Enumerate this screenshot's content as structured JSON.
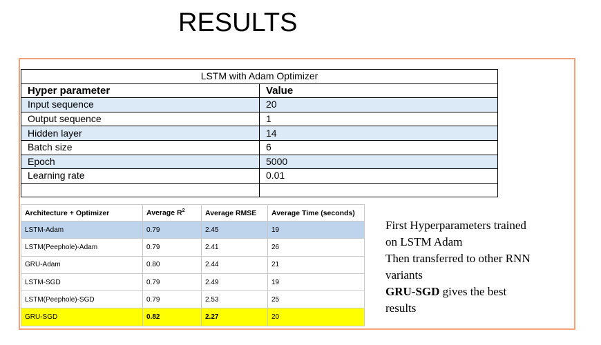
{
  "slide": {
    "title": "RESULTS"
  },
  "hyperparams": {
    "caption": "LSTM with Adam Optimizer",
    "header": [
      "Hyper parameter",
      "Value"
    ],
    "rows": [
      [
        "Input sequence",
        "20"
      ],
      [
        "Output sequence",
        "1"
      ],
      [
        "Hidden layer",
        "14"
      ],
      [
        "Batch size",
        "6"
      ],
      [
        "Epoch",
        "5000"
      ],
      [
        "Learning rate",
        "0.01"
      ],
      [
        "",
        ""
      ]
    ]
  },
  "results": {
    "header": [
      "Architecture + Optimizer",
      "Average R",
      "2",
      "Average RMSE",
      "Average Time (seconds)"
    ],
    "rows": [
      [
        "LSTM-Adam",
        "0.79",
        "2.45",
        "19"
      ],
      [
        "LSTM(Peephole)-Adam",
        "0.79",
        "2.41",
        "26"
      ],
      [
        "GRU-Adam",
        "0.80",
        "2.44",
        "21"
      ],
      [
        "LSTM-SGD",
        "0.79",
        "2.49",
        "19"
      ],
      [
        "LSTM(Peephole)-SGD",
        "0.79",
        "2.53",
        "25"
      ],
      [
        "GRU-SGD",
        "0.82",
        "2.27",
        "20"
      ]
    ]
  },
  "notes": {
    "line1": "First Hyperparameters trained",
    "line2": "on LSTM Adam",
    "line3": "Then transferred to other RNN",
    "line4": "variants",
    "line5_bold": "GRU-SGD",
    "line5_rest": " gives the best",
    "line6": "results"
  }
}
